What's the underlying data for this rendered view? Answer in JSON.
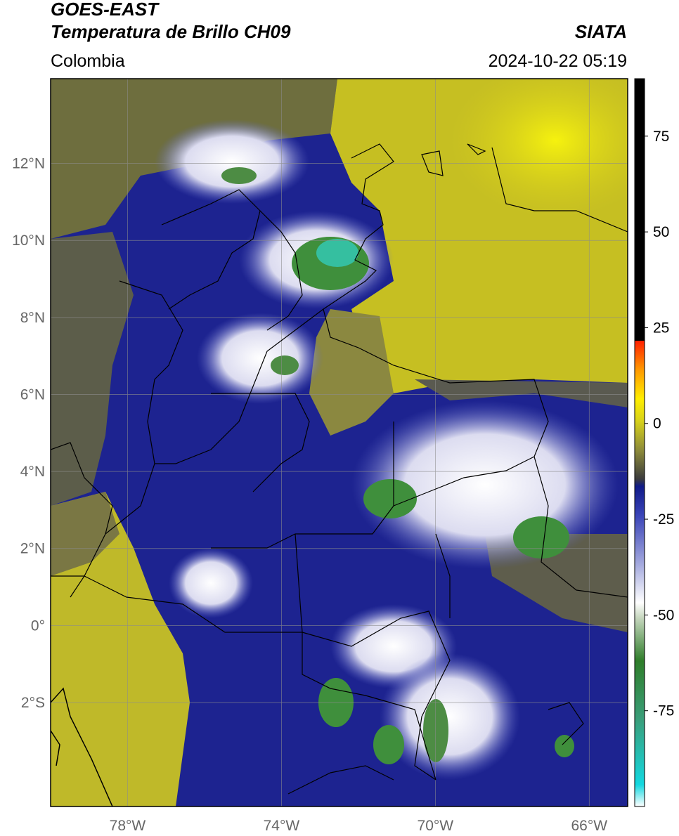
{
  "header": {
    "satellite": "GOES-EAST",
    "product": "Temperatura de Brillo CH09",
    "agency": "SIATA",
    "region": "Colombia",
    "datetime": "2024-10-22 05:19"
  },
  "map": {
    "longitude_range": [
      -80,
      -65
    ],
    "latitude_range": [
      -4.7,
      14.2
    ],
    "lat_ticks": [
      {
        "value": 12,
        "label": "12°N"
      },
      {
        "value": 10,
        "label": "10°N"
      },
      {
        "value": 8,
        "label": "8°N"
      },
      {
        "value": 6,
        "label": "6°N"
      },
      {
        "value": 4,
        "label": "4°N"
      },
      {
        "value": 2,
        "label": "2°N"
      },
      {
        "value": 0,
        "label": "0°"
      },
      {
        "value": -2,
        "label": "2°S"
      }
    ],
    "lon_ticks": [
      {
        "value": -78,
        "label": "78°W"
      },
      {
        "value": -74,
        "label": "74°W"
      },
      {
        "value": -70,
        "label": "70°W"
      },
      {
        "value": -66,
        "label": "66°W"
      }
    ],
    "gridlines": true,
    "colors": {
      "warm_yellow": "#c9c21e",
      "bright_yellow": "#f2ee10",
      "olive": "#7c7b3a",
      "deep_blue": "#1a1f8c",
      "mid_blue": "#3b48b8",
      "white": "#f4f4fb",
      "green": "#3d8f3a",
      "teal": "#33c2a6",
      "border": "#000000"
    }
  },
  "colorbar": {
    "range": [
      -100,
      90
    ],
    "ticks": [
      {
        "value": 75,
        "label": "75"
      },
      {
        "value": 50,
        "label": "50"
      },
      {
        "value": 25,
        "label": "25"
      },
      {
        "value": 0,
        "label": "0"
      },
      {
        "value": -25,
        "label": "-25"
      },
      {
        "value": -50,
        "label": "-50"
      },
      {
        "value": -75,
        "label": "-75"
      }
    ]
  }
}
